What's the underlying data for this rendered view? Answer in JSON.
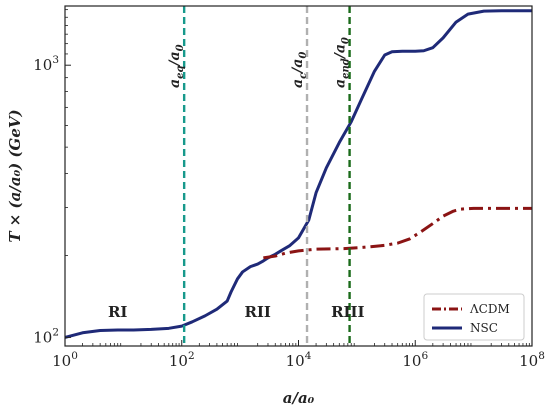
{
  "chart_data": {
    "type": "line",
    "xlabel": "a/a₀",
    "ylabel": "T × (a/a₀) (GeV)",
    "xscale": "log",
    "yscale": "log",
    "xlim": [
      1,
      100000000
    ],
    "ylim": [
      93,
      1650
    ],
    "x_ticks": [
      {
        "value": 1,
        "base": "10",
        "exp": "0"
      },
      {
        "value": 100,
        "base": "10",
        "exp": "2"
      },
      {
        "value": 10000,
        "base": "10",
        "exp": "4"
      },
      {
        "value": 1000000,
        "base": "10",
        "exp": "6"
      },
      {
        "value": 100000000,
        "base": "10",
        "exp": "8"
      }
    ],
    "y_ticks": [
      {
        "value": 100,
        "base": "10",
        "exp": "2"
      },
      {
        "value": 1000,
        "base": "10",
        "exp": "3"
      }
    ],
    "series": [
      {
        "name": "ΛCDM",
        "color": "#8b1414",
        "style": "dashdot",
        "x": [
          2500,
          4000,
          6000,
          10000,
          20000,
          60000,
          120000,
          200000,
          300000,
          500000,
          800000,
          1200000,
          2000000,
          3000000,
          4500000,
          6000000,
          10000000,
          30000000,
          100000000
        ],
        "y": [
          196,
          199,
          204,
          208,
          211,
          212,
          214,
          216,
          218,
          222,
          230,
          243,
          262,
          279,
          291,
          296,
          298,
          298,
          298
        ]
      },
      {
        "name": "NSC",
        "color": "#1f2a78",
        "style": "solid",
        "x": [
          1,
          2,
          4,
          8,
          15,
          30,
          60,
          100,
          150,
          250,
          400,
          600,
          700,
          900,
          1100,
          1500,
          2000,
          2500,
          3000,
          4000,
          5000,
          7000,
          10000,
          15000,
          20000,
          30000,
          50000,
          80000,
          120000,
          200000,
          300000,
          400000,
          600000,
          1000000,
          1400000,
          2000000,
          3000000,
          5000000,
          8000000,
          15000000,
          30000000,
          50000000,
          100000000
        ],
        "y": [
          100,
          104,
          106,
          106.5,
          106.5,
          107,
          108,
          110,
          114,
          120,
          127,
          136,
          147,
          164,
          174,
          182,
          186,
          191,
          196,
          202,
          208,
          217,
          232,
          270,
          340,
          420,
          520,
          620,
          750,
          950,
          1090,
          1120,
          1125,
          1125,
          1130,
          1160,
          1260,
          1440,
          1540,
          1580,
          1585,
          1585,
          1585
        ]
      }
    ],
    "vlines": [
      {
        "name": "a_eq",
        "x": 110,
        "color": "#17998c",
        "label_main": "a",
        "label_sub": "eq",
        "label_tail": "/a",
        "label_tail_sub": "0"
      },
      {
        "name": "a_c",
        "x": 14000,
        "color": "#b0b0b0",
        "label_main": "a",
        "label_sub": "c",
        "label_tail": "/a",
        "label_tail_sub": "0"
      },
      {
        "name": "a_end",
        "x": 75000,
        "color": "#1a6b1a",
        "label_main": "a",
        "label_sub": "end",
        "label_tail": "/a",
        "label_tail_sub": "0"
      }
    ],
    "regions": [
      {
        "label": "RI",
        "x": 8,
        "y": 119
      },
      {
        "label": "RII",
        "x": 2000,
        "y": 119
      },
      {
        "label": "RIII",
        "x": 70000,
        "y": 119
      }
    ],
    "legend": {
      "position": "lower-right"
    },
    "grid": false
  }
}
